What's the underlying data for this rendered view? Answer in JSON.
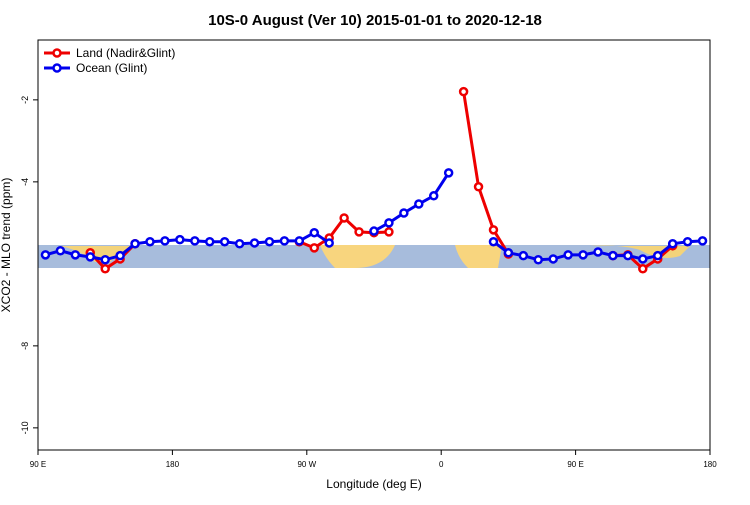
{
  "chart_data": {
    "type": "line",
    "title": "10S-0 August (Ver 10)   2015-01-01 to 2020-12-18",
    "x_label": "Longitude (deg E)",
    "y_label": "XCO2 - MLO trend (ppm)",
    "x": [
      95,
      105,
      115,
      125,
      135,
      145,
      155,
      165,
      175,
      185,
      195,
      205,
      215,
      225,
      235,
      245,
      255,
      265,
      275,
      285,
      295,
      305,
      315,
      325,
      335,
      345,
      355,
      365,
      375,
      385,
      395,
      405,
      415,
      425,
      435,
      445,
      455,
      465,
      475,
      485,
      495,
      505,
      515,
      525,
      535
    ],
    "series": [
      {
        "name": "Land (Nadir&Glint)",
        "color": "#ee0000",
        "values": [
          null,
          null,
          null,
          -5.73,
          -6.12,
          -5.88,
          -5.51,
          null,
          null,
          null,
          null,
          null,
          null,
          null,
          null,
          null,
          null,
          -5.46,
          -5.61,
          -5.37,
          -4.88,
          -5.22,
          -5.24,
          -5.22,
          null,
          null,
          null,
          null,
          -1.8,
          -4.12,
          -5.17,
          -5.76,
          null,
          null,
          null,
          null,
          null,
          null,
          -5.8,
          -5.78,
          -6.12,
          -5.88,
          -5.56,
          null,
          null
        ]
      },
      {
        "name": "Ocean (Glint)",
        "color": "#0000ee",
        "values": [
          -5.78,
          -5.68,
          -5.78,
          -5.83,
          -5.9,
          -5.8,
          -5.51,
          -5.46,
          -5.44,
          -5.41,
          -5.44,
          -5.46,
          -5.46,
          -5.51,
          -5.49,
          -5.46,
          -5.44,
          -5.44,
          -5.24,
          -5.49,
          null,
          null,
          -5.2,
          -5.0,
          -4.76,
          -4.54,
          -4.34,
          -3.78,
          null,
          null,
          -5.46,
          -5.73,
          -5.8,
          -5.9,
          -5.88,
          -5.78,
          -5.78,
          -5.71,
          -5.8,
          -5.8,
          -5.88,
          -5.8,
          -5.51,
          -5.46,
          -5.44
        ]
      }
    ],
    "xlim": [
      90,
      540
    ],
    "xticks": [
      {
        "value": 90,
        "label": "90 E"
      },
      180,
      {
        "value": 270,
        "label": "90 W"
      },
      {
        "value": 360,
        "label": "0"
      },
      {
        "value": 450,
        "label": "90 E"
      },
      {
        "value": 540,
        "label": "180"
      }
    ],
    "ylim": [
      -10.54,
      -0.54
    ],
    "yticks": [
      -10,
      -8,
      -4,
      -2
    ],
    "legend": "top-left"
  }
}
